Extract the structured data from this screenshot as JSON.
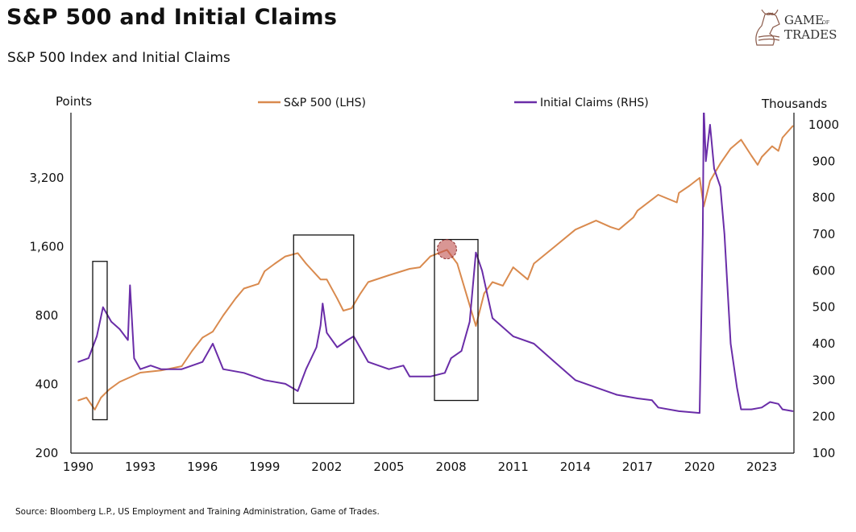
{
  "title": "S&P 500 and Initial Claims",
  "subtitle": "S&P 500 Index and Initial Claims",
  "source": "Source: Bloomberg L.P., US Employment and Training Administration, Game of Trades.",
  "logo": {
    "text": "GAME OF TRADES"
  },
  "chart_data": {
    "type": "line",
    "ylabel_left": "Points",
    "ylabel_right": "Thousands",
    "left_axis": {
      "scale": "log",
      "range": [
        200,
        5600
      ],
      "ticks": [
        200,
        400,
        800,
        1600,
        3200
      ],
      "tick_labels": [
        "200",
        "400",
        "800",
        "1,600",
        "3,200"
      ]
    },
    "right_axis": {
      "scale": "linear",
      "range": [
        100,
        1000
      ],
      "ticks": [
        100,
        200,
        300,
        400,
        500,
        600,
        700,
        800,
        900,
        1000
      ],
      "tick_labels": [
        "100",
        "200",
        "300",
        "400",
        "500",
        "600",
        "700",
        "800",
        "900",
        "1000"
      ]
    },
    "x_axis": {
      "range": [
        1990,
        2024.6
      ],
      "ticks": [
        1990,
        1993,
        1996,
        1999,
        2002,
        2005,
        2008,
        2011,
        2014,
        2017,
        2020,
        2023
      ],
      "tick_labels": [
        "1990",
        "1993",
        "1996",
        "1999",
        "2002",
        "2005",
        "2008",
        "2011",
        "2014",
        "2017",
        "2020",
        "2023"
      ]
    },
    "grid": false,
    "legend_placement": "top",
    "series": [
      {
        "name": "S&P 500 (LHS)",
        "axis": "left",
        "color": "#D98A4E",
        "x": [
          1990,
          1990.4,
          1990.8,
          1991.1,
          1991.5,
          1992,
          1993,
          1994,
          1995,
          1995.5,
          1996,
          1996.5,
          1997,
          1997.6,
          1998,
          1998.7,
          1999,
          1999.5,
          2000,
          2000.6,
          2001,
          2001.7,
          2002,
          2002.5,
          2002.8,
          2003.2,
          2003.6,
          2004,
          2005,
          2006,
          2006.5,
          2007,
          2007.8,
          2008.3,
          2008.8,
          2009.2,
          2009.6,
          2010,
          2010.5,
          2011,
          2011.7,
          2012,
          2013,
          2014,
          2015,
          2015.7,
          2016.1,
          2016.8,
          2017,
          2018,
          2018.9,
          2019,
          2019.5,
          2020,
          2020.2,
          2020.5,
          2021,
          2021.5,
          2022,
          2022.5,
          2022.8,
          2023,
          2023.5,
          2023.8,
          2024,
          2024.5
        ],
        "values": [
          340,
          350,
          310,
          350,
          380,
          410,
          450,
          460,
          480,
          560,
          640,
          680,
          800,
          950,
          1050,
          1100,
          1250,
          1350,
          1450,
          1500,
          1350,
          1150,
          1150,
          950,
          840,
          860,
          990,
          1120,
          1200,
          1280,
          1300,
          1450,
          1550,
          1350,
          950,
          720,
          1000,
          1120,
          1080,
          1300,
          1150,
          1350,
          1600,
          1900,
          2080,
          1950,
          1900,
          2150,
          2300,
          2700,
          2500,
          2750,
          2950,
          3200,
          2400,
          3100,
          3700,
          4300,
          4700,
          4000,
          3650,
          3950,
          4400,
          4200,
          4800,
          5400
        ]
      },
      {
        "name": "Initial Claims (RHS)",
        "axis": "right",
        "color": "#6A2DA8",
        "x": [
          1990,
          1990.5,
          1990.9,
          1991.2,
          1991.6,
          1992,
          1992.4,
          1992.5,
          1992.7,
          1993,
          1993.5,
          1994,
          1995,
          1996,
          1996.5,
          1997,
          1998,
          1999,
          2000,
          2000.6,
          2001,
          2001.5,
          2001.7,
          2001.8,
          2002,
          2002.5,
          2003,
          2003.3,
          2003.6,
          2004,
          2005,
          2005.7,
          2006,
          2007,
          2007.7,
          2008,
          2008.5,
          2008.9,
          2009.2,
          2009.5,
          2010,
          2011,
          2012,
          2013,
          2014,
          2015,
          2016,
          2017,
          2017.7,
          2018,
          2019,
          2020,
          2020.15,
          2020.2,
          2020.3,
          2020.5,
          2020.7,
          2021,
          2021.2,
          2021.5,
          2021.8,
          2022,
          2022.5,
          2023,
          2023.4,
          2023.8,
          2024,
          2024.5
        ],
        "values": [
          350,
          360,
          420,
          500,
          460,
          440,
          410,
          560,
          360,
          330,
          340,
          330,
          330,
          350,
          400,
          330,
          320,
          300,
          290,
          270,
          330,
          390,
          450,
          510,
          430,
          390,
          410,
          420,
          390,
          350,
          330,
          340,
          310,
          310,
          320,
          360,
          380,
          460,
          650,
          600,
          470,
          420,
          400,
          350,
          300,
          280,
          260,
          250,
          245,
          225,
          215,
          210,
          700,
          1050,
          900,
          1000,
          880,
          830,
          700,
          400,
          280,
          220,
          220,
          225,
          240,
          235,
          220,
          215
        ]
      }
    ],
    "annotations": [
      {
        "type": "box",
        "x_range": [
          1990.7,
          1991.4
        ],
        "left_range": [
          280,
          1380
        ]
      },
      {
        "type": "box",
        "x_range": [
          2000.4,
          2003.3
        ],
        "left_range": [
          330,
          1800
        ]
      },
      {
        "type": "box",
        "x_range": [
          2007.2,
          2009.3
        ],
        "left_range": [
          340,
          1720
        ]
      },
      {
        "type": "circle",
        "x": 2007.8,
        "left_value": 1560,
        "color": "#C0504D"
      }
    ]
  }
}
